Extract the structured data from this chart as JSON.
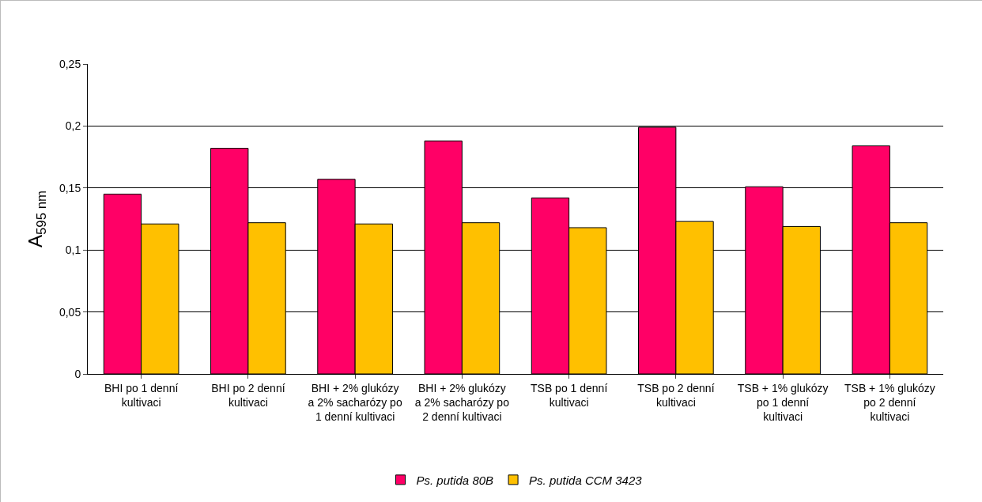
{
  "chart_data": {
    "type": "bar",
    "ylabel": "A$_{595 nm}$",
    "categories": [
      "BHI po 1 denní kultivaci",
      "BHI po 2 denní kultivaci",
      "BHI + 2% glukózy a 2% sacharózy po 1 denní kultivaci",
      "BHI + 2% glukózy a 2% sacharózy po 2 denní kultivaci",
      "TSB po 1 denní kultivaci",
      "TSB po 2 denní kultivaci",
      "TSB + 1% glukózy po 1 denní kultivaci",
      "TSB + 1% glukózy po 2 denní kultivaci"
    ],
    "series": [
      {
        "name": "Ps. putida 80B",
        "color": "#ff0066",
        "values": [
          0.145,
          0.182,
          0.157,
          0.188,
          0.142,
          0.199,
          0.151,
          0.184
        ]
      },
      {
        "name": "Ps. putida CCM 3423",
        "color": "#ffc000",
        "values": [
          0.121,
          0.122,
          0.121,
          0.122,
          0.118,
          0.123,
          0.119,
          0.122
        ]
      }
    ],
    "ylim": [
      0,
      0.25
    ],
    "yticks": [
      0,
      {
        "value": 0.05,
        "label": "0,05"
      },
      {
        "value": 0.1,
        "label": "0,1"
      },
      {
        "value": 0.15,
        "label": "0,15"
      },
      {
        "value": 0.2,
        "label": "0,2"
      },
      {
        "value": 0.25,
        "label": "0,25"
      }
    ],
    "grid": "y",
    "legend": "bottom"
  }
}
